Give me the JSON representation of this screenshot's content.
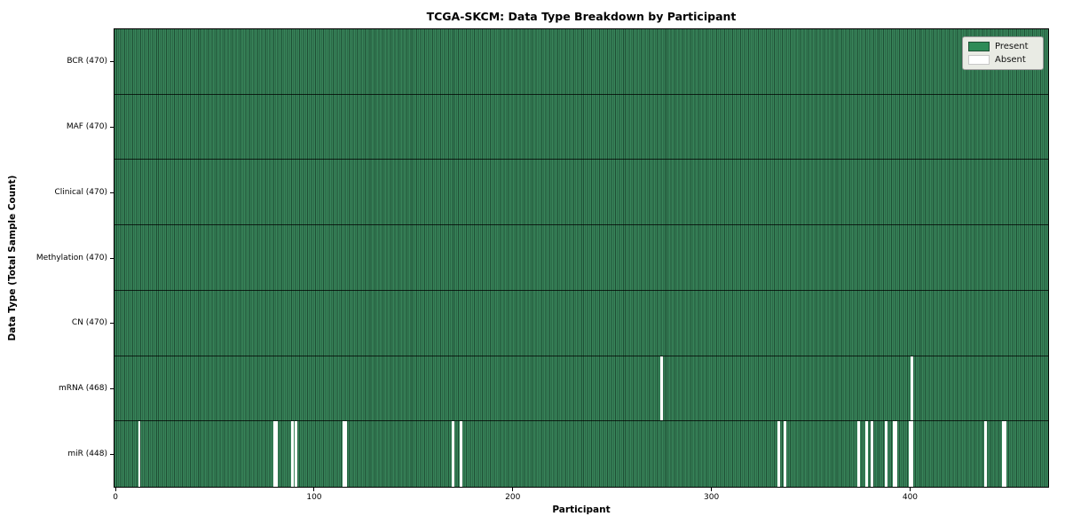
{
  "chart_data": {
    "type": "heatmap",
    "title": "TCGA-SKCM: Data Type Breakdown by Participant",
    "xlabel": "Participant",
    "ylabel": "Data Type (Total Sample Count)",
    "n_participants": 470,
    "x_ticks": [
      0,
      100,
      200,
      300,
      400
    ],
    "legend": [
      {
        "label": "Present",
        "color": "#2e8b57"
      },
      {
        "label": "Absent",
        "color": "#ffffff"
      }
    ],
    "colors": {
      "present_fill": "#38855a",
      "bar_edge": "#1f4f35",
      "absent_fill": "#ffffff",
      "row_divider": "#141414",
      "legend_bg": "#e9ebe4"
    },
    "rows": [
      {
        "label": "BCR (470)",
        "data_type": "BCR",
        "total": 470,
        "absent_participants": []
      },
      {
        "label": "MAF (470)",
        "data_type": "MAF",
        "total": 470,
        "absent_participants": []
      },
      {
        "label": "Clinical (470)",
        "data_type": "Clinical",
        "total": 470,
        "absent_participants": []
      },
      {
        "label": "Methylation (470)",
        "data_type": "Methylation",
        "total": 470,
        "absent_participants": []
      },
      {
        "label": "CN (470)",
        "data_type": "CN",
        "total": 470,
        "absent_participants": []
      },
      {
        "label": "mRNA (468)",
        "data_type": "mRNA",
        "total": 468,
        "absent_participants": [
          275,
          401
        ]
      },
      {
        "label": "miR (448)",
        "data_type": "miR",
        "total": 448,
        "absent_participants": [
          12,
          80,
          81,
          89,
          91,
          115,
          116,
          170,
          174,
          334,
          337,
          374,
          378,
          381,
          388,
          392,
          393,
          400,
          401,
          438,
          447,
          448
        ]
      }
    ]
  }
}
